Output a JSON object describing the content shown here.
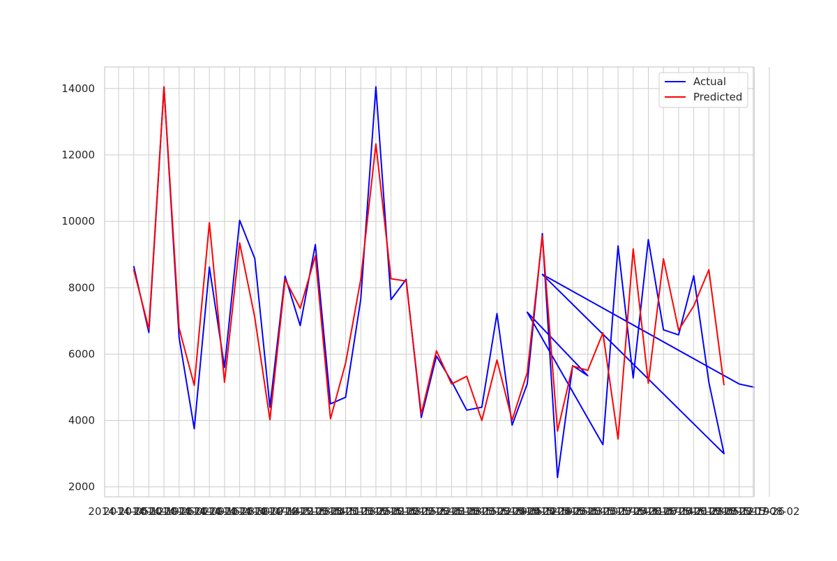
{
  "chart_data": {
    "type": "line",
    "title": "",
    "xlabel": "",
    "ylabel": "",
    "ylim": [
      1700,
      14650
    ],
    "yticks": [
      2000,
      4000,
      6000,
      8000,
      10000,
      12000,
      14000
    ],
    "grid": true,
    "legend_position": "top-right",
    "x_ticks": [
      "2014-10-05",
      "2014-10-12",
      "2014-10-19",
      "2014-10-26",
      "2014-11-02",
      "2014-11-09",
      "2014-11-16",
      "2014-11-23",
      "2014-11-30",
      "2014-12-07",
      "2014-12-14",
      "2014-12-21",
      "2014-12-28",
      "2015-01-04",
      "2015-01-11",
      "2015-01-18",
      "2015-01-25",
      "2015-02-01",
      "2015-02-08",
      "2015-02-15",
      "2015-02-22",
      "2015-03-01",
      "2015-03-08",
      "2015-03-15",
      "2015-03-22",
      "2015-03-29",
      "2015-04-05",
      "2015-04-12",
      "2015-04-19",
      "2015-04-26",
      "2015-05-03",
      "2015-05-10",
      "2015-05-17",
      "2015-05-24",
      "2015-05-31",
      "2015-06-07",
      "2015-06-14",
      "2015-06-21",
      "2015-06-28",
      "2015-07-05",
      "2015-07-12",
      "2015-07-19",
      "2015-07-26",
      "2015-08-02"
    ],
    "series": [
      {
        "name": "Actual",
        "color": "#0000ff",
        "x_index": [
          1,
          2,
          3,
          4,
          5,
          6,
          7,
          8,
          9,
          10,
          11,
          12,
          13,
          14,
          15,
          16,
          17,
          18,
          19,
          20,
          21,
          22,
          23,
          24,
          25,
          26,
          27,
          28,
          29,
          30,
          31,
          27,
          32,
          33,
          34,
          35,
          36,
          37,
          38,
          39,
          40,
          28,
          41,
          42
        ],
        "values": [
          8650,
          6650,
          14050,
          6500,
          3750,
          8620,
          5600,
          10030,
          8880,
          4400,
          8350,
          6860,
          9300,
          4500,
          4700,
          7650,
          14050,
          7640,
          8250,
          4090,
          5940,
          5180,
          4310,
          4400,
          7220,
          3860,
          5100,
          9630,
          2280,
          5650,
          5350,
          7260,
          3270,
          9260,
          5280,
          9450,
          6730,
          6580,
          8360,
          5150,
          3000,
          8400,
          5100,
          5000
        ]
      },
      {
        "name": "Predicted",
        "color": "#ff0000",
        "x_index": [
          1,
          2,
          3,
          4,
          5,
          6,
          7,
          8,
          9,
          10,
          11,
          12,
          13,
          14,
          15,
          16,
          17,
          18,
          19,
          20,
          21,
          22,
          23,
          24,
          25,
          26,
          27,
          28,
          29,
          30,
          31,
          32,
          33,
          34,
          35,
          36,
          37,
          38,
          39,
          40
        ],
        "values": [
          8550,
          6760,
          14050,
          6780,
          5060,
          9960,
          5150,
          9350,
          7100,
          4020,
          8250,
          7380,
          8960,
          4050,
          5730,
          8250,
          12330,
          8270,
          8200,
          4200,
          6100,
          5100,
          5330,
          4000,
          5820,
          4010,
          5440,
          9560,
          3680,
          5640,
          5510,
          6640,
          3440,
          9170,
          5120,
          8870,
          6720,
          7450,
          8540,
          5060
        ]
      }
    ]
  }
}
